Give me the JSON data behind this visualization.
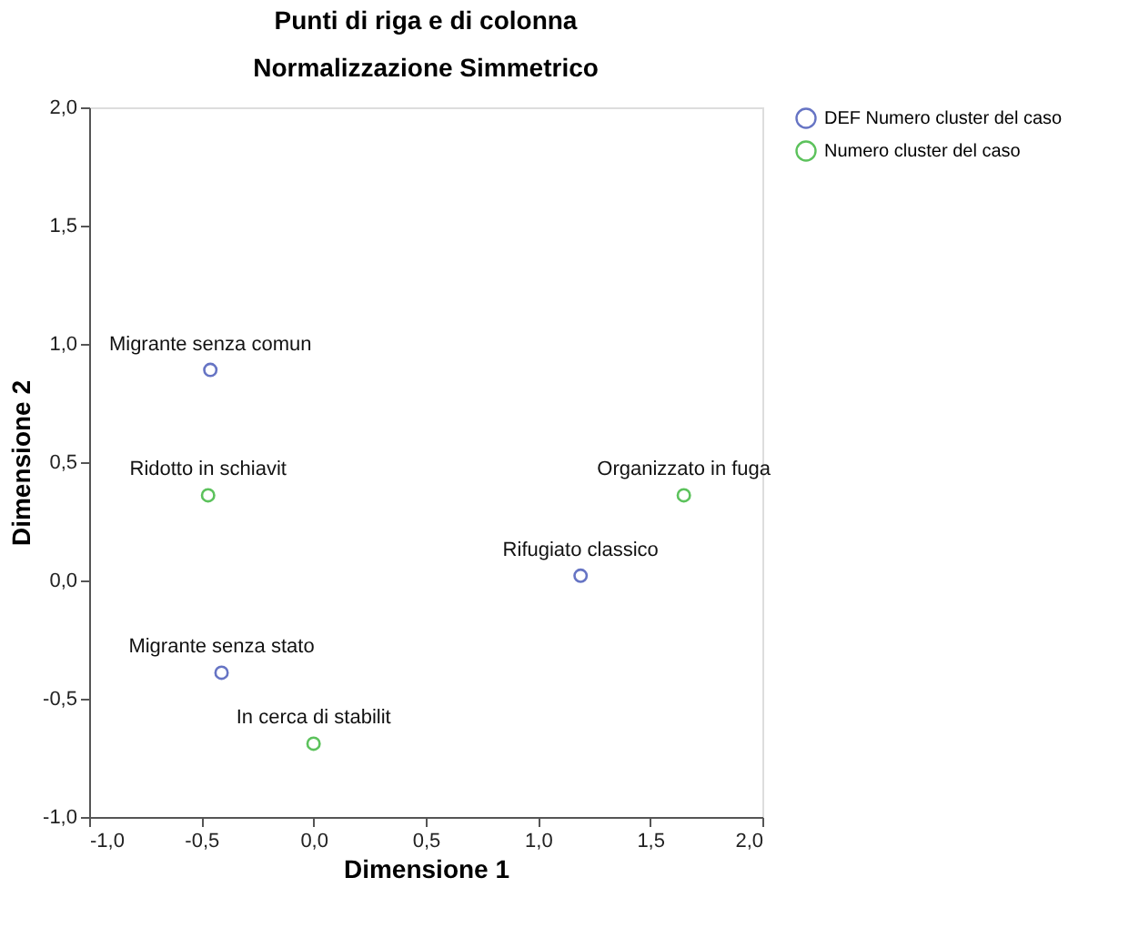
{
  "chart_data": {
    "type": "scatter",
    "title": "Punti di riga e di colonna",
    "subtitle": "Normalizzazione Simmetrico",
    "xlabel": "Dimensione 1",
    "ylabel": "Dimensione 2",
    "xlim": [
      -1.0,
      2.0
    ],
    "ylim": [
      -1.0,
      2.0
    ],
    "xticks": [
      {
        "value": -1.0,
        "label": "-1,0"
      },
      {
        "value": -0.5,
        "label": "-0,5"
      },
      {
        "value": 0.0,
        "label": "0,0"
      },
      {
        "value": 0.5,
        "label": "0,5"
      },
      {
        "value": 1.0,
        "label": "1,0"
      },
      {
        "value": 1.5,
        "label": "1,5"
      },
      {
        "value": 2.0,
        "label": "2,0"
      }
    ],
    "yticks": [
      {
        "value": -1.0,
        "label": "-1,0"
      },
      {
        "value": -0.5,
        "label": "-0,5"
      },
      {
        "value": 0.0,
        "label": "0,0"
      },
      {
        "value": 0.5,
        "label": "0,5"
      },
      {
        "value": 1.0,
        "label": "1,0"
      },
      {
        "value": 1.5,
        "label": "1,5"
      },
      {
        "value": 2.0,
        "label": "2,0"
      }
    ],
    "series": [
      {
        "name": "DEF Numero cluster del caso",
        "color": "#6674c4",
        "x": [
          -0.46,
          1.19,
          -0.41
        ],
        "values": [
          0.89,
          0.02,
          -0.39
        ]
      },
      {
        "name": "Numero cluster del caso",
        "color": "#5cc25c",
        "x": [
          -0.47,
          1.65,
          0.0
        ],
        "values": [
          0.36,
          0.36,
          -0.69
        ]
      }
    ],
    "annotations": [
      {
        "text": "Migrante senza comun",
        "x": -0.46,
        "y": 0.89
      },
      {
        "text": "Rifugiato classico",
        "x": 1.19,
        "y": 0.02
      },
      {
        "text": "Migrante senza stato",
        "x": -0.41,
        "y": -0.39
      },
      {
        "text": "Ridotto in schiavit",
        "x": -0.47,
        "y": 0.36
      },
      {
        "text": "Organizzato in fuga",
        "x": 1.65,
        "y": 0.36
      },
      {
        "text": "In cerca di stabilit",
        "x": 0.0,
        "y": -0.69
      }
    ],
    "marker": "circle",
    "grid": false,
    "legend": "top right"
  }
}
